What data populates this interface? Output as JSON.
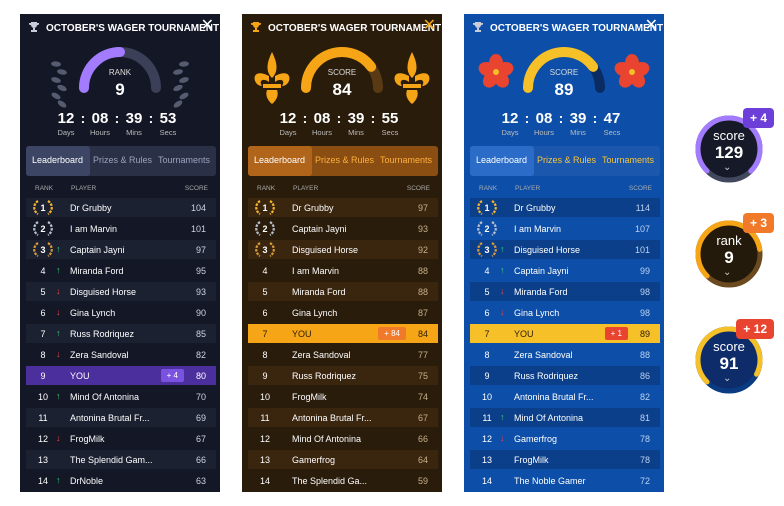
{
  "panels": [
    {
      "theme": "purple",
      "title": "OCTOBER'S WAGER TOURNAMENT",
      "gauge": {
        "label": "RANK",
        "value": "9",
        "fill": 0.5
      },
      "timer": {
        "d": "12",
        "h": "08",
        "m": "39",
        "s": "53"
      },
      "timer_units": {
        "d": "Days",
        "h": "Hours",
        "m": "Mins",
        "s": "Secs"
      },
      "tabs": [
        "Leaderboard",
        "Prizes & Rules",
        "Tournaments"
      ],
      "columns": {
        "rank": "RANK",
        "player": "PLAYER",
        "score": "SCORE"
      },
      "rows": [
        {
          "rank": "1",
          "dir": "",
          "name": "Dr Grubby",
          "score": "104"
        },
        {
          "rank": "2",
          "dir": "",
          "name": "I am Marvin",
          "score": "101"
        },
        {
          "rank": "3",
          "dir": "up",
          "name": "Captain Jayni",
          "score": "97"
        },
        {
          "rank": "4",
          "dir": "up",
          "name": "Miranda Ford",
          "score": "95"
        },
        {
          "rank": "5",
          "dir": "down",
          "name": "Disguised Horse",
          "score": "93"
        },
        {
          "rank": "6",
          "dir": "down",
          "name": "Gina Lynch",
          "score": "90"
        },
        {
          "rank": "7",
          "dir": "up",
          "name": "Russ Rodriquez",
          "score": "85"
        },
        {
          "rank": "8",
          "dir": "down",
          "name": "Zera Sandoval",
          "score": "82"
        },
        {
          "rank": "9",
          "dir": "",
          "name": "YOU",
          "score": "80",
          "you": true,
          "delta": "+ 4"
        },
        {
          "rank": "10",
          "dir": "up",
          "name": "Mind Of Antonina",
          "score": "70"
        },
        {
          "rank": "11",
          "dir": "",
          "name": "Antonina Brutal Fr...",
          "score": "69"
        },
        {
          "rank": "12",
          "dir": "down",
          "name": "FrogMilk",
          "score": "67"
        },
        {
          "rank": "13",
          "dir": "",
          "name": "The Splendid Gam...",
          "score": "66"
        },
        {
          "rank": "14",
          "dir": "up",
          "name": "DrNoble",
          "score": "63"
        }
      ]
    },
    {
      "theme": "orange",
      "title": "OCTOBER'S WAGER TOURNAMENT",
      "gauge": {
        "label": "SCORE",
        "value": "84",
        "fill": 0.8
      },
      "timer": {
        "d": "12",
        "h": "08",
        "m": "39",
        "s": "55"
      },
      "timer_units": {
        "d": "Days",
        "h": "Hours",
        "m": "Mins",
        "s": "Secs"
      },
      "tabs": [
        "Leaderboard",
        "Prizes & Rules",
        "Tournaments"
      ],
      "columns": {
        "rank": "RANK",
        "player": "PLAYER",
        "score": "SCORE"
      },
      "rows": [
        {
          "rank": "1",
          "dir": "",
          "name": "Dr Grubby",
          "score": "97"
        },
        {
          "rank": "2",
          "dir": "",
          "name": "Captain Jayni",
          "score": "93"
        },
        {
          "rank": "3",
          "dir": "",
          "name": "Disguised Horse",
          "score": "92"
        },
        {
          "rank": "4",
          "dir": "",
          "name": "I am Marvin",
          "score": "88"
        },
        {
          "rank": "5",
          "dir": "",
          "name": "Miranda Ford",
          "score": "88"
        },
        {
          "rank": "6",
          "dir": "",
          "name": "Gina Lynch",
          "score": "87"
        },
        {
          "rank": "7",
          "dir": "",
          "name": "YOU",
          "score": "84",
          "you": true,
          "delta": "+ 84"
        },
        {
          "rank": "8",
          "dir": "",
          "name": "Zera Sandoval",
          "score": "77"
        },
        {
          "rank": "9",
          "dir": "",
          "name": "Russ Rodriquez",
          "score": "75"
        },
        {
          "rank": "10",
          "dir": "",
          "name": "FrogMilk",
          "score": "74"
        },
        {
          "rank": "11",
          "dir": "",
          "name": "Antonina Brutal Fr...",
          "score": "67"
        },
        {
          "rank": "12",
          "dir": "",
          "name": "Mind Of Antonina",
          "score": "66"
        },
        {
          "rank": "13",
          "dir": "",
          "name": "Gamerfrog",
          "score": "64"
        },
        {
          "rank": "14",
          "dir": "",
          "name": "The Splendid Ga...",
          "score": "59"
        }
      ]
    },
    {
      "theme": "blue",
      "title": "OCTOBER'S WAGER TOURNAMENT",
      "gauge": {
        "label": "SCORE",
        "value": "89",
        "fill": 0.8
      },
      "timer": {
        "d": "12",
        "h": "08",
        "m": "39",
        "s": "47"
      },
      "timer_units": {
        "d": "Days",
        "h": "Hours",
        "m": "Mins",
        "s": "Secs"
      },
      "tabs": [
        "Leaderboard",
        "Prizes & Rules",
        "Tournaments"
      ],
      "columns": {
        "rank": "RANK",
        "player": "PLAYER",
        "score": "SCORE"
      },
      "rows": [
        {
          "rank": "1",
          "dir": "",
          "name": "Dr Grubby",
          "score": "114"
        },
        {
          "rank": "2",
          "dir": "",
          "name": "I am Marvin",
          "score": "107"
        },
        {
          "rank": "3",
          "dir": "up",
          "name": "Disguised Horse",
          "score": "101"
        },
        {
          "rank": "4",
          "dir": "up",
          "name": "Captain Jayni",
          "score": "99"
        },
        {
          "rank": "5",
          "dir": "down",
          "name": "Miranda Ford",
          "score": "98"
        },
        {
          "rank": "6",
          "dir": "down",
          "name": "Gina Lynch",
          "score": "98"
        },
        {
          "rank": "7",
          "dir": "",
          "name": "YOU",
          "score": "89",
          "you": true,
          "delta": "+ 1"
        },
        {
          "rank": "8",
          "dir": "",
          "name": "Zera Sandoval",
          "score": "88"
        },
        {
          "rank": "9",
          "dir": "",
          "name": "Russ Rodriquez",
          "score": "86"
        },
        {
          "rank": "10",
          "dir": "",
          "name": "Antonina Brutal Fr...",
          "score": "82"
        },
        {
          "rank": "11",
          "dir": "up",
          "name": "Mind Of Antonina",
          "score": "81"
        },
        {
          "rank": "12",
          "dir": "down",
          "name": "Gamerfrog",
          "score": "78"
        },
        {
          "rank": "13",
          "dir": "",
          "name": "FrogMilk",
          "score": "78"
        },
        {
          "rank": "14",
          "dir": "",
          "name": "The Noble Gamer",
          "score": "72"
        }
      ]
    }
  ],
  "badges": [
    {
      "label": "score",
      "value": "129",
      "delta": "+ 4",
      "theme": "purple",
      "fill": 0.75
    },
    {
      "label": "rank",
      "value": "9",
      "delta": "+ 3",
      "theme": "orange",
      "fill": 0.6
    },
    {
      "label": "score",
      "value": "91",
      "delta": "+ 12",
      "theme": "blue",
      "fill": 0.7
    }
  ],
  "themes": {
    "purple": {
      "bg": "#141826",
      "row": "#1c2132",
      "tabbar": "#2a3147",
      "tabsel": "#3c4563",
      "tabtext": "#9aa3bd",
      "you": "#4b2f9c",
      "accent": "#a37bff",
      "track": "#3b3f57",
      "delta": "#7b52e0",
      "x": "#ffffff",
      "laurel": "#565c70",
      "dl": "#cdd2e0",
      "ring": "#a37bff",
      "ringtrack": "#41475c",
      "badgebg": "#161a28",
      "badgedelta": "#6b3fd8"
    },
    "orange": {
      "bg": "#2a1c0b",
      "row": "#3a250e",
      "tabbar": "#8a4d12",
      "tabsel": "#b0651a",
      "tabtext": "#ffb13c",
      "you": "#f5a516",
      "accent": "#f5a516",
      "track": "#5a3a14",
      "delta": "#f07a2a",
      "x": "#f5a516",
      "laurel": "#f5a516",
      "dl": "#c8b08a",
      "ring": "#f5a516",
      "ringtrack": "#6a4a1e",
      "badgebg": "#241a0c",
      "badgedelta": "#f07a2a"
    },
    "blue": {
      "bg": "#0d4fa8",
      "row": "#0b3f8a",
      "tabbar": "#1b57ad",
      "tabsel": "#2a6cc8",
      "tabtext": "#f5c53c",
      "you": "#f5c028",
      "accent": "#f5c028",
      "track": "#0a2c63",
      "delta": "#e8442f",
      "x": "#ffffff",
      "laurel": "#e8442f",
      "dl": "#bcd2f0",
      "ring": "#f5c028",
      "ringtrack": "#0a3a80",
      "badgebg": "#0f2c6a",
      "badgedelta": "#e8442f"
    }
  }
}
